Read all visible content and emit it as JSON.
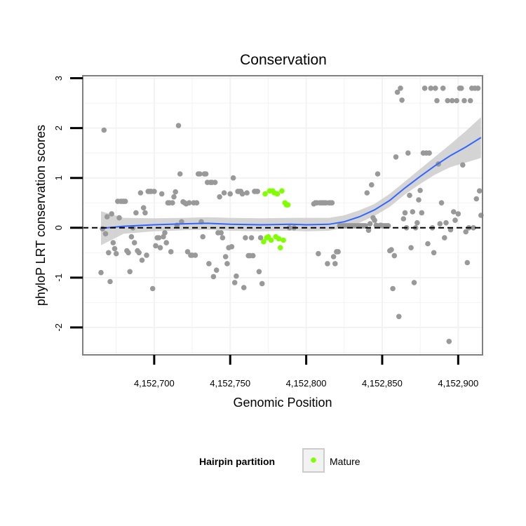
{
  "chart_data": {
    "type": "scatter",
    "title": "Conservation",
    "xlabel": "Genomic Position",
    "ylabel": "phyloP LRT conservation scores",
    "xlim": [
      4152653,
      4152916
    ],
    "ylim": [
      -2.55,
      3.05
    ],
    "x_ticks": [
      4152700,
      4152750,
      4152800,
      4152850,
      4152900
    ],
    "x_tick_labels": [
      "4,152,700",
      "4,152,750",
      "4,152,800",
      "4,152,850",
      "4,152,900"
    ],
    "y_ticks": [
      -2,
      -1,
      0,
      1,
      2,
      3
    ],
    "y_tick_labels": [
      "-2",
      "-1",
      "0",
      "1",
      "2",
      "3"
    ],
    "reference_line": {
      "y": 0,
      "style": "dashed"
    },
    "colors": {
      "other": "#999999",
      "mature": "#7fff00",
      "smooth": "#3366ff",
      "ribbon": "#cccccc",
      "panel_border": "#808080",
      "grid": "#f2f2f2"
    },
    "legend": {
      "title": "Hairpin partition",
      "entries": [
        "Mature"
      ],
      "position": "bottom"
    },
    "points_other": [
      [
        4152665,
        -0.9
      ],
      [
        4152666,
        -0.02
      ],
      [
        4152667,
        1.96
      ],
      [
        4152668,
        -0.12
      ],
      [
        4152669,
        0.22
      ],
      [
        4152670,
        -0.5
      ],
      [
        4152671,
        -1.08
      ],
      [
        4152672,
        0.28
      ],
      [
        4152673,
        -0.3
      ],
      [
        4152674,
        -0.42
      ],
      [
        4152675,
        -0.52
      ],
      [
        4152676,
        0.53
      ],
      [
        4152677,
        0.2
      ],
      [
        4152678,
        0.53
      ],
      [
        4152679,
        0.53
      ],
      [
        4152680,
        0.53
      ],
      [
        4152681,
        0.53
      ],
      [
        4152682,
        -0.46
      ],
      [
        4152683,
        -0.5
      ],
      [
        4152684,
        -0.88
      ],
      [
        4152685,
        -0.18
      ],
      [
        4152686,
        0.0
      ],
      [
        4152687,
        -0.3
      ],
      [
        4152688,
        0.3
      ],
      [
        4152689,
        -0.46
      ],
      [
        4152690,
        -0.5
      ],
      [
        4152691,
        0.7
      ],
      [
        4152692,
        -0.65
      ],
      [
        4152693,
        0.4
      ],
      [
        4152694,
        0.3
      ],
      [
        4152695,
        -0.55
      ],
      [
        4152696,
        0.73
      ],
      [
        4152697,
        0.73
      ],
      [
        4152698,
        0.73
      ],
      [
        4152699,
        -1.22
      ],
      [
        4152700,
        0.73
      ],
      [
        4152701,
        -0.36
      ],
      [
        4152702,
        -0.2
      ],
      [
        4152703,
        -0.2
      ],
      [
        4152704,
        -0.4
      ],
      [
        4152705,
        0.68
      ],
      [
        4152706,
        -0.18
      ],
      [
        4152707,
        -0.1
      ],
      [
        4152708,
        -0.3
      ],
      [
        4152709,
        0.5
      ],
      [
        4152710,
        0.5
      ],
      [
        4152711,
        -0.48
      ],
      [
        4152712,
        0.5
      ],
      [
        4152713,
        0.62
      ],
      [
        4152714,
        0.72
      ],
      [
        4152715,
        0.05
      ],
      [
        4152716,
        2.05
      ],
      [
        4152717,
        1.08
      ],
      [
        4152718,
        0.12
      ],
      [
        4152719,
        0.52
      ],
      [
        4152720,
        0.5
      ],
      [
        4152721,
        0.48
      ],
      [
        4152722,
        -0.48
      ],
      [
        4152723,
        0.5
      ],
      [
        4152724,
        -0.55
      ],
      [
        4152725,
        -0.55
      ],
      [
        4152726,
        0.5
      ],
      [
        4152727,
        -0.55
      ],
      [
        4152728,
        0.5
      ],
      [
        4152729,
        1.08
      ],
      [
        4152730,
        1.08
      ],
      [
        4152731,
        0.12
      ],
      [
        4152732,
        -0.18
      ],
      [
        4152733,
        1.08
      ],
      [
        4152734,
        1.08
      ],
      [
        4152735,
        0.91
      ],
      [
        4152736,
        -0.72
      ],
      [
        4152737,
        0.91
      ],
      [
        4152738,
        0.91
      ],
      [
        4152739,
        -0.98
      ],
      [
        4152740,
        0.91
      ],
      [
        4152741,
        -0.85
      ],
      [
        4152742,
        -0.1
      ],
      [
        4152743,
        0.62
      ],
      [
        4152744,
        -0.1
      ],
      [
        4152745,
        -0.2
      ],
      [
        4152746,
        0.7
      ],
      [
        4152747,
        -0.58
      ],
      [
        4152748,
        -0.72
      ],
      [
        4152749,
        -0.4
      ],
      [
        4152750,
        0.68
      ],
      [
        4152751,
        -0.38
      ],
      [
        4152752,
        1.0
      ],
      [
        4152753,
        -1.1
      ],
      [
        4152754,
        -0.97
      ],
      [
        4152755,
        0.73
      ],
      [
        4152756,
        0.73
      ],
      [
        4152757,
        0.73
      ],
      [
        4152758,
        0.68
      ],
      [
        4152759,
        -1.2
      ],
      [
        4152760,
        -0.2
      ],
      [
        4152761,
        0.7
      ],
      [
        4152762,
        -0.56
      ],
      [
        4152763,
        -0.56
      ],
      [
        4152764,
        -0.2
      ],
      [
        4152765,
        -0.56
      ],
      [
        4152766,
        0.73
      ],
      [
        4152767,
        0.73
      ],
      [
        4152768,
        0.73
      ],
      [
        4152769,
        -0.88
      ],
      [
        4152770,
        -0.2
      ],
      [
        4152771,
        -1.12
      ],
      [
        4152789,
        0.0
      ],
      [
        4152792,
        0.0
      ],
      [
        4152805,
        0.48
      ],
      [
        4152806,
        0.5
      ],
      [
        4152807,
        0.5
      ],
      [
        4152808,
        -0.52
      ],
      [
        4152809,
        0.5
      ],
      [
        4152810,
        0.5
      ],
      [
        4152811,
        0.5
      ],
      [
        4152812,
        0.5
      ],
      [
        4152813,
        0.5
      ],
      [
        4152814,
        -0.72
      ],
      [
        4152815,
        0.5
      ],
      [
        4152816,
        0.5
      ],
      [
        4152817,
        0.5
      ],
      [
        4152818,
        -0.58
      ],
      [
        4152819,
        -0.72
      ],
      [
        4152820,
        -0.48
      ],
      [
        4152821,
        -0.48
      ],
      [
        4152822,
        0.04
      ],
      [
        4152823,
        0.04
      ],
      [
        4152824,
        0.04
      ],
      [
        4152825,
        0.04
      ],
      [
        4152826,
        0.04
      ],
      [
        4152827,
        0.04
      ],
      [
        4152828,
        0.04
      ],
      [
        4152829,
        0.04
      ],
      [
        4152830,
        0.04
      ],
      [
        4152831,
        0.04
      ],
      [
        4152832,
        0.04
      ],
      [
        4152833,
        0.04
      ],
      [
        4152834,
        0.04
      ],
      [
        4152835,
        0.04
      ],
      [
        4152836,
        0.04
      ],
      [
        4152837,
        0.04
      ],
      [
        4152838,
        0.04
      ],
      [
        4152839,
        0.04
      ],
      [
        4152840,
        0.7
      ],
      [
        4152841,
        -0.05
      ],
      [
        4152842,
        0.08
      ],
      [
        4152843,
        0.86
      ],
      [
        4152844,
        0.2
      ],
      [
        4152845,
        0.15
      ],
      [
        4152846,
        0.05
      ],
      [
        4152847,
        1.08
      ],
      [
        4152848,
        0.04
      ],
      [
        4152849,
        0.05
      ],
      [
        4152850,
        0.04
      ],
      [
        4152851,
        0.04
      ],
      [
        4152852,
        0.04
      ],
      [
        4152853,
        0.04
      ],
      [
        4152854,
        0.04
      ],
      [
        4152855,
        -0.46
      ],
      [
        4152856,
        -0.44
      ],
      [
        4152857,
        -1.22
      ],
      [
        4152858,
        -0.56
      ],
      [
        4152859,
        1.42
      ],
      [
        4152860,
        2.72
      ],
      [
        4152861,
        -1.78
      ],
      [
        4152862,
        2.8
      ],
      [
        4152863,
        2.56
      ],
      [
        4152864,
        0.18
      ],
      [
        4152865,
        0.3
      ],
      [
        4152866,
        0.0
      ],
      [
        4152867,
        1.5
      ],
      [
        4152868,
        0.65
      ],
      [
        4152869,
        -0.4
      ],
      [
        4152870,
        0.32
      ],
      [
        4152871,
        -1.1
      ],
      [
        4152872,
        0.0
      ],
      [
        4152873,
        0.1
      ],
      [
        4152874,
        0.56
      ],
      [
        4152875,
        0.75
      ],
      [
        4152876,
        0.3
      ],
      [
        4152877,
        1.5
      ],
      [
        4152878,
        2.8
      ],
      [
        4152879,
        1.5
      ],
      [
        4152880,
        -0.32
      ],
      [
        4152881,
        1.5
      ],
      [
        4152882,
        2.8
      ],
      [
        4152883,
        0.0
      ],
      [
        4152884,
        -0.5
      ],
      [
        4152885,
        2.8
      ],
      [
        4152886,
        2.55
      ],
      [
        4152887,
        1.28
      ],
      [
        4152888,
        0.08
      ],
      [
        4152889,
        0.5
      ],
      [
        4152890,
        2.8
      ],
      [
        4152891,
        -0.2
      ],
      [
        4152892,
        0.1
      ],
      [
        4152893,
        2.55
      ],
      [
        4152894,
        -2.28
      ],
      [
        4152895,
        -0.04
      ],
      [
        4152896,
        2.55
      ],
      [
        4152897,
        0.32
      ],
      [
        4152898,
        0.15
      ],
      [
        4152899,
        2.55
      ],
      [
        4152900,
        0.28
      ],
      [
        4152901,
        2.8
      ],
      [
        4152902,
        2.8
      ],
      [
        4152903,
        1.26
      ],
      [
        4152904,
        2.55
      ],
      [
        4152905,
        -0.08
      ],
      [
        4152906,
        -0.7
      ],
      [
        4152907,
        0.0
      ],
      [
        4152908,
        2.55
      ],
      [
        4152909,
        2.8
      ],
      [
        4152910,
        0.0
      ],
      [
        4152911,
        2.8
      ],
      [
        4152912,
        0.58
      ],
      [
        4152913,
        2.8
      ],
      [
        4152914,
        0.74
      ],
      [
        4152915,
        0.25
      ]
    ],
    "points_mature": [
      [
        4152772,
        -0.28
      ],
      [
        4152773,
        0.68
      ],
      [
        4152774,
        -0.2
      ],
      [
        4152775,
        -0.18
      ],
      [
        4152776,
        0.74
      ],
      [
        4152777,
        -0.25
      ],
      [
        4152778,
        0.74
      ],
      [
        4152779,
        0.7
      ],
      [
        4152780,
        -0.18
      ],
      [
        4152781,
        0.68
      ],
      [
        4152782,
        -0.22
      ],
      [
        4152783,
        -0.4
      ],
      [
        4152784,
        0.74
      ],
      [
        4152785,
        -0.25
      ],
      [
        4152786,
        0.5
      ],
      [
        4152787,
        0.46
      ],
      [
        4152788,
        0.46
      ]
    ],
    "smooth_line": [
      [
        4152665,
        -0.01
      ],
      [
        4152680,
        0.03
      ],
      [
        4152700,
        0.06
      ],
      [
        4152720,
        0.08
      ],
      [
        4152735,
        0.09
      ],
      [
        4152750,
        0.07
      ],
      [
        4152770,
        0.06
      ],
      [
        4152790,
        0.07
      ],
      [
        4152800,
        0.06
      ],
      [
        4152815,
        0.07
      ],
      [
        4152825,
        0.12
      ],
      [
        4152835,
        0.22
      ],
      [
        4152845,
        0.36
      ],
      [
        4152855,
        0.55
      ],
      [
        4152865,
        0.8
      ],
      [
        4152875,
        1.03
      ],
      [
        4152885,
        1.25
      ],
      [
        4152895,
        1.45
      ],
      [
        4152905,
        1.62
      ],
      [
        4152915,
        1.81
      ]
    ],
    "smooth_upper": [
      [
        4152665,
        0.33
      ],
      [
        4152680,
        0.2
      ],
      [
        4152700,
        0.19
      ],
      [
        4152720,
        0.2
      ],
      [
        4152735,
        0.21
      ],
      [
        4152750,
        0.2
      ],
      [
        4152770,
        0.19
      ],
      [
        4152790,
        0.2
      ],
      [
        4152800,
        0.2
      ],
      [
        4152815,
        0.2
      ],
      [
        4152825,
        0.25
      ],
      [
        4152835,
        0.35
      ],
      [
        4152845,
        0.48
      ],
      [
        4152855,
        0.68
      ],
      [
        4152865,
        0.93
      ],
      [
        4152875,
        1.18
      ],
      [
        4152885,
        1.43
      ],
      [
        4152895,
        1.68
      ],
      [
        4152905,
        1.94
      ],
      [
        4152915,
        2.22
      ]
    ],
    "smooth_lower": [
      [
        4152665,
        -0.35
      ],
      [
        4152680,
        -0.12
      ],
      [
        4152700,
        -0.07
      ],
      [
        4152720,
        -0.05
      ],
      [
        4152735,
        -0.04
      ],
      [
        4152750,
        -0.06
      ],
      [
        4152770,
        -0.07
      ],
      [
        4152790,
        -0.06
      ],
      [
        4152800,
        -0.07
      ],
      [
        4152815,
        -0.06
      ],
      [
        4152825,
        0.0
      ],
      [
        4152835,
        0.1
      ],
      [
        4152845,
        0.24
      ],
      [
        4152855,
        0.42
      ],
      [
        4152865,
        0.67
      ],
      [
        4152875,
        0.88
      ],
      [
        4152885,
        1.07
      ],
      [
        4152895,
        1.22
      ],
      [
        4152905,
        1.31
      ],
      [
        4152915,
        1.4
      ]
    ]
  }
}
